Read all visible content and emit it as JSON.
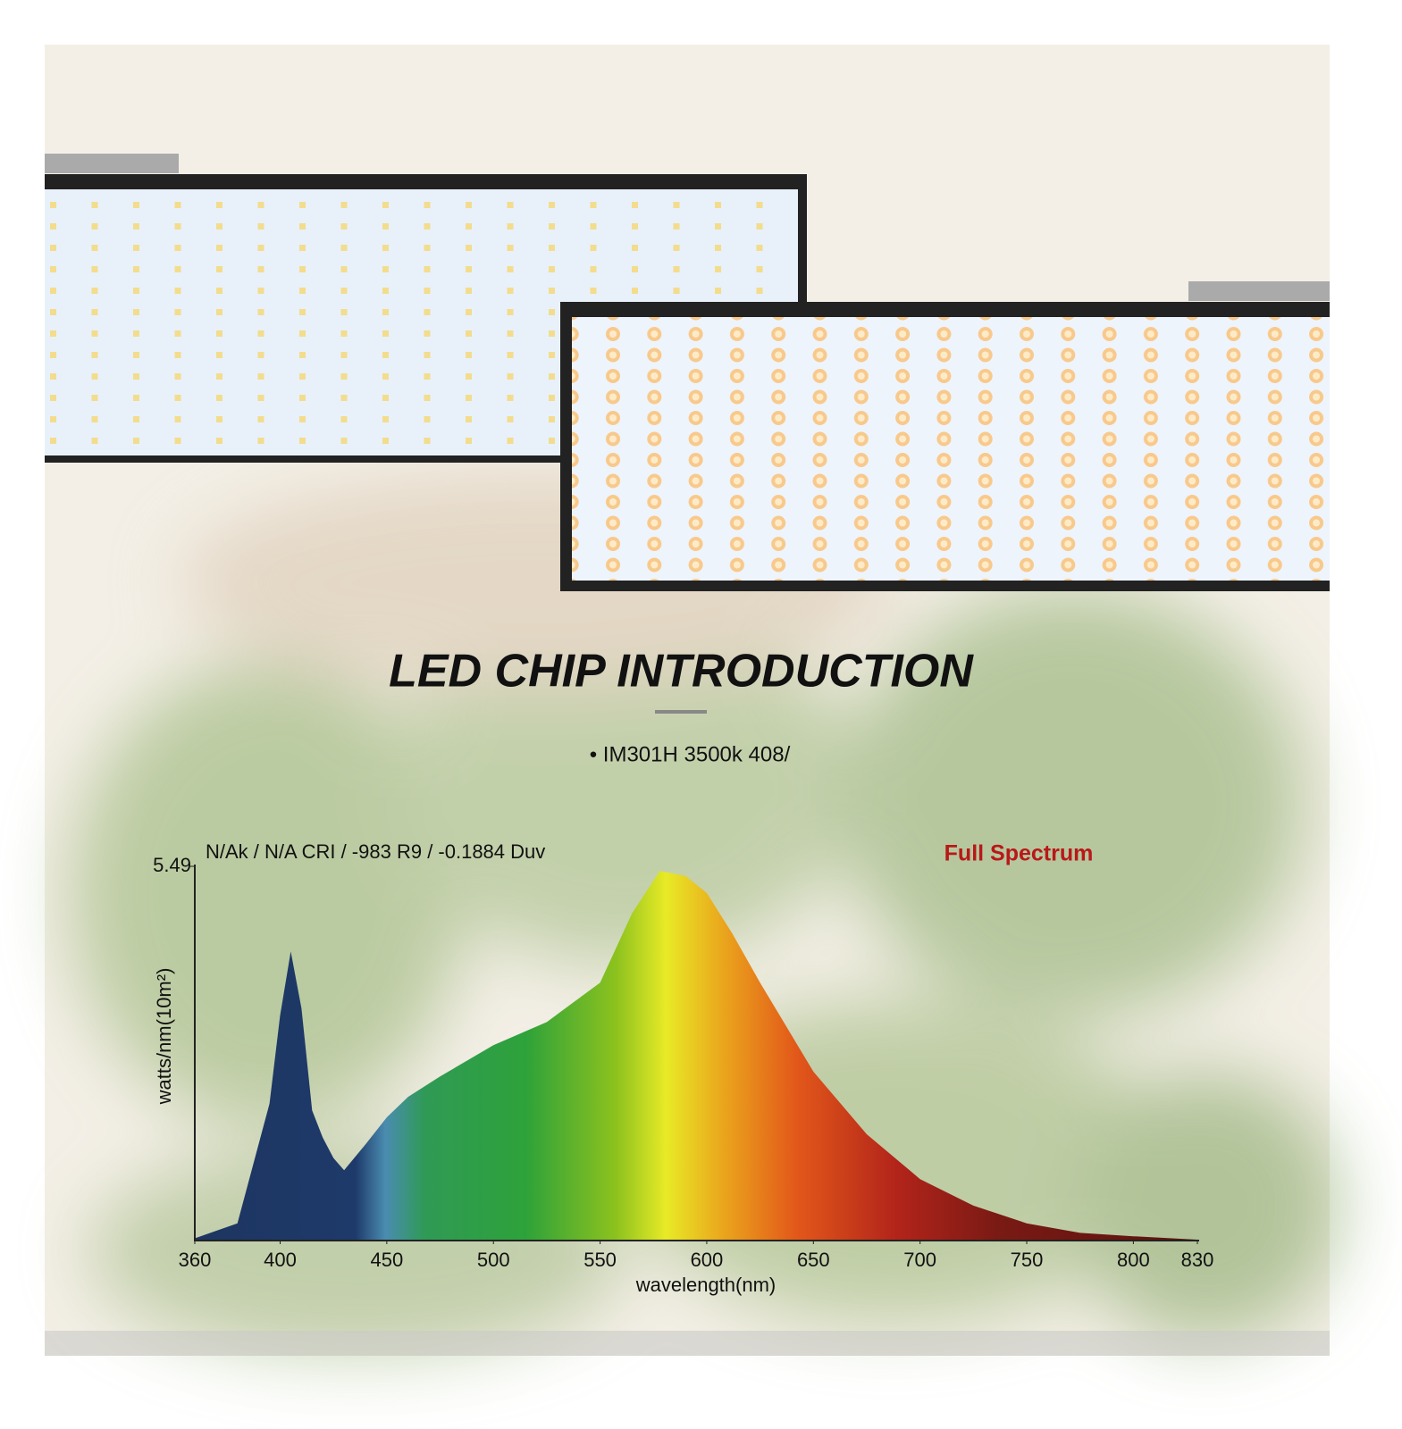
{
  "header": {
    "title": "LED CHIP INTRODUCTION",
    "subtitle": "• IM301H 3500k 408/"
  },
  "chart_data": {
    "type": "area",
    "annotation": "N/Ak / N/A CRI / -983 R9 / -0.1884 Duv",
    "label": "Full Spectrum",
    "x_label": "wavelength(nm)",
    "y_label": "watts/nm(10m²)",
    "x": [
      360,
      380,
      395,
      400,
      405,
      410,
      415,
      420,
      425,
      430,
      440,
      450,
      460,
      475,
      500,
      525,
      550,
      565,
      578,
      590,
      600,
      612,
      625,
      650,
      675,
      700,
      725,
      750,
      775,
      800,
      830
    ],
    "values": [
      0.02,
      0.24,
      2.0,
      3.3,
      4.24,
      3.4,
      1.9,
      1.5,
      1.2,
      1.02,
      1.4,
      1.8,
      2.1,
      2.4,
      2.86,
      3.2,
      3.78,
      4.8,
      5.42,
      5.35,
      5.1,
      4.5,
      3.78,
      2.47,
      1.55,
      0.89,
      0.5,
      0.24,
      0.1,
      0.05,
      0
    ],
    "xlim": [
      360,
      830
    ],
    "xticks": [
      360,
      400,
      450,
      500,
      550,
      600,
      650,
      700,
      750,
      800,
      830
    ],
    "ylim": [
      0,
      5.49
    ],
    "yticks": [
      5.49
    ]
  }
}
